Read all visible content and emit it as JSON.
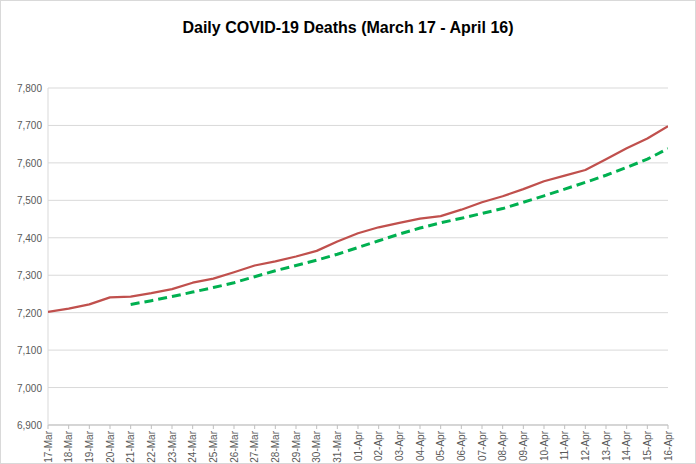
{
  "chart_data": {
    "type": "line",
    "title": "Daily COVID-19 Deaths (March 17 - April 16)",
    "categories": [
      "17-Mar",
      "18-Mar",
      "19-Mar",
      "20-Mar",
      "21-Mar",
      "22-Mar",
      "23-Mar",
      "24-Mar",
      "25-Mar",
      "26-Mar",
      "27-Mar",
      "28-Mar",
      "29-Mar",
      "30-Mar",
      "31-Mar",
      "01-Apr",
      "02-Apr",
      "03-Apr",
      "04-Apr",
      "05-Apr",
      "06-Apr",
      "07-Apr",
      "08-Apr",
      "09-Apr",
      "10-Apr",
      "11-Apr",
      "12-Apr",
      "13-Apr",
      "14-Apr",
      "15-Apr",
      "16-Apr"
    ],
    "series": [
      {
        "color": "#c0504d",
        "line_style": "solid",
        "values": [
          7202,
          7211,
          7222,
          7241,
          7243,
          7252,
          7263,
          7280,
          7291,
          7308,
          7326,
          7337,
          7350,
          7365,
          7390,
          7412,
          7428,
          7440,
          7451,
          7458,
          7475,
          7495,
          7511,
          7530,
          7551,
          7566,
          7581,
          7610,
          7639,
          7665,
          7698
        ]
      },
      {
        "color": "#00b050",
        "line_style": "dashed",
        "values": [
          null,
          null,
          null,
          null,
          7222,
          7232,
          7243,
          7255,
          7267,
          7280,
          7296,
          7312,
          7326,
          7340,
          7356,
          7374,
          7392,
          7410,
          7426,
          7440,
          7452,
          7465,
          7478,
          7495,
          7512,
          7530,
          7548,
          7567,
          7588,
          7610,
          7638
        ]
      }
    ],
    "ylim": [
      6900,
      7800
    ],
    "yticks": [
      {
        "value": 6900,
        "label": "6,900"
      },
      {
        "value": 7000,
        "label": "7,000"
      },
      {
        "value": 7100,
        "label": "7,100"
      },
      {
        "value": 7200,
        "label": "7,200"
      },
      {
        "value": 7300,
        "label": "7,300"
      },
      {
        "value": 7400,
        "label": "7,400"
      },
      {
        "value": 7500,
        "label": "7,500"
      },
      {
        "value": 7600,
        "label": "7,600"
      },
      {
        "value": 7700,
        "label": "7,700"
      },
      {
        "value": 7800,
        "label": "7,800"
      }
    ],
    "grid": true
  }
}
